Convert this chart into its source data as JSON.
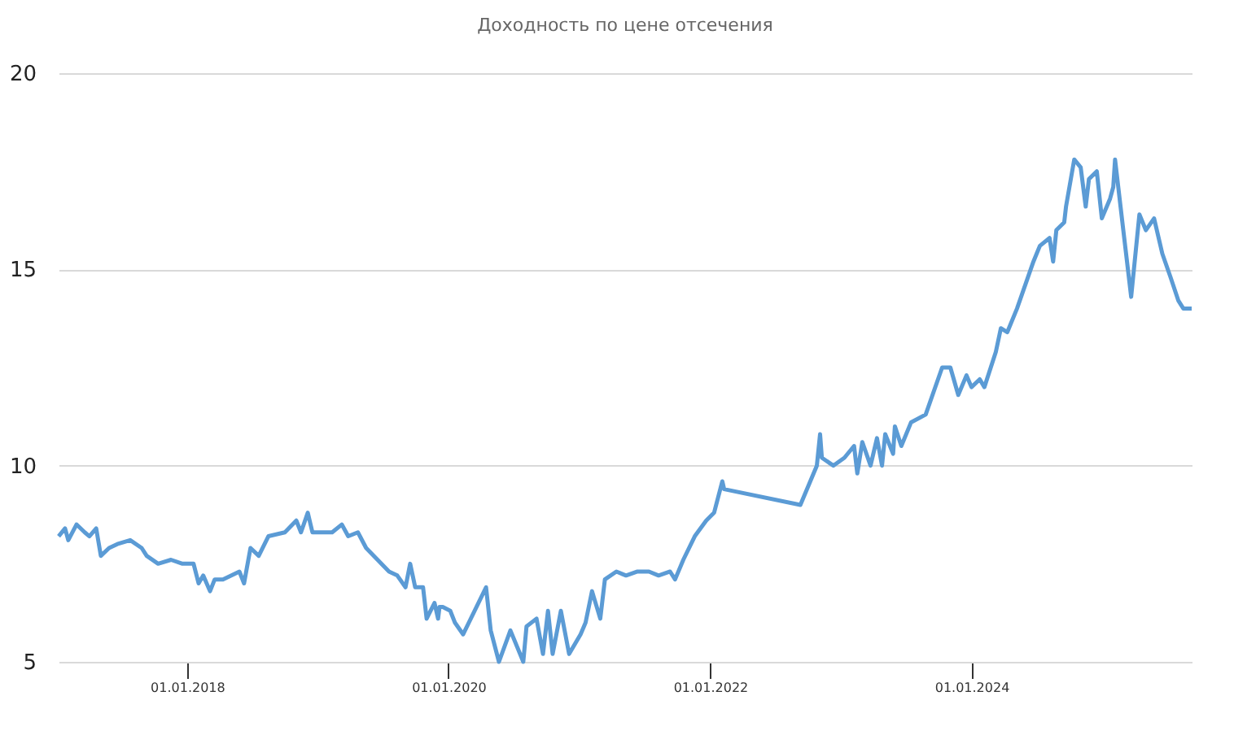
{
  "chart_data": {
    "type": "line",
    "title": "Доходность по цене отсечения",
    "x": [
      "2017-01-07",
      "2017-01-25",
      "2017-02-03",
      "2017-02-26",
      "2017-03-21",
      "2017-04-03",
      "2017-04-22",
      "2017-05-05",
      "2017-05-28",
      "2017-06-20",
      "2017-07-26",
      "2017-08-27",
      "2017-09-10",
      "2017-10-12",
      "2017-11-17",
      "2017-12-19",
      "2018-01-19",
      "2018-02-02",
      "2018-02-15",
      "2018-03-06",
      "2018-03-19",
      "2018-04-11",
      "2018-05-27",
      "2018-06-09",
      "2018-06-27",
      "2018-07-20",
      "2018-08-16",
      "2018-10-01",
      "2018-11-02",
      "2018-11-15",
      "2018-12-04",
      "2018-12-17",
      "2019-02-10",
      "2019-03-09",
      "2019-03-27",
      "2019-04-23",
      "2019-05-16",
      "2019-06-17",
      "2019-07-19",
      "2019-08-11",
      "2019-09-03",
      "2019-09-16",
      "2019-09-30",
      "2019-10-22",
      "2019-11-01",
      "2019-11-23",
      "2019-12-03",
      "2019-12-07",
      "2019-12-16",
      "2020-01-06",
      "2020-01-19",
      "2020-02-11",
      "2020-04-15",
      "2020-04-28",
      "2020-05-21",
      "2020-06-22",
      "2020-07-28",
      "2020-08-06",
      "2020-09-03",
      "2020-09-21",
      "2020-10-05",
      "2020-10-18",
      "2020-11-10",
      "2020-12-03",
      "2021-01-04",
      "2021-01-18",
      "2021-02-05",
      "2021-02-28",
      "2021-03-13",
      "2021-04-14",
      "2021-05-11",
      "2021-06-12",
      "2021-07-14",
      "2021-08-10",
      "2021-09-11",
      "2021-09-25",
      "2021-10-18",
      "2021-11-19",
      "2021-12-21",
      "2022-01-12",
      "2022-02-04",
      "2022-02-09",
      "2022-09-10",
      "2022-10-26",
      "2022-11-04",
      "2022-11-09",
      "2022-12-11",
      "2023-01-11",
      "2023-02-07",
      "2023-02-16",
      "2023-03-02",
      "2023-03-25",
      "2023-04-12",
      "2023-04-26",
      "2023-05-05",
      "2023-05-27",
      "2023-06-01",
      "2023-06-19",
      "2023-07-16",
      "2023-08-26",
      "2023-10-11",
      "2023-11-03",
      "2023-11-25",
      "2023-12-18",
      "2024-01-01",
      "2024-01-24",
      "2024-02-06",
      "2024-03-09",
      "2024-03-23",
      "2024-04-10",
      "2024-05-07",
      "2024-06-22",
      "2024-07-10",
      "2024-08-06",
      "2024-08-16",
      "2024-08-25",
      "2024-09-16",
      "2024-09-21",
      "2024-10-14",
      "2024-11-01",
      "2024-11-15",
      "2024-11-24",
      "2024-12-16",
      "2024-12-30",
      "2025-01-22",
      "2025-01-31",
      "2025-02-05",
      "2025-02-28",
      "2025-03-22",
      "2025-04-14",
      "2025-05-02",
      "2025-05-25",
      "2025-06-17",
      "2025-07-10",
      "2025-08-01",
      "2025-08-15",
      "2025-09-07"
    ],
    "series": [
      {
        "color": "#5b9bd5",
        "values": [
          8.2,
          8.4,
          8.1,
          8.5,
          8.3,
          8.2,
          8.4,
          7.7,
          7.9,
          8.0,
          8.1,
          7.9,
          7.7,
          7.5,
          7.6,
          7.5,
          7.5,
          7.0,
          7.2,
          6.8,
          7.1,
          7.1,
          7.3,
          7.0,
          7.9,
          7.7,
          8.2,
          8.3,
          8.6,
          8.3,
          8.8,
          8.3,
          8.3,
          8.5,
          8.2,
          8.3,
          7.9,
          7.6,
          7.3,
          7.2,
          6.9,
          7.5,
          6.9,
          6.9,
          6.1,
          6.5,
          6.1,
          6.4,
          6.4,
          6.3,
          6.0,
          5.7,
          6.9,
          5.8,
          5.0,
          5.8,
          5.0,
          5.9,
          6.1,
          5.2,
          6.3,
          5.2,
          6.3,
          5.2,
          5.7,
          6.0,
          6.8,
          6.1,
          7.1,
          7.3,
          7.2,
          7.3,
          7.3,
          7.2,
          7.3,
          7.1,
          7.6,
          8.2,
          8.6,
          8.8,
          9.6,
          9.4,
          9.0,
          10.0,
          10.8,
          10.2,
          10.0,
          10.2,
          10.5,
          9.8,
          10.6,
          10.0,
          10.7,
          10.0,
          10.8,
          10.3,
          11.0,
          10.5,
          11.1,
          11.3,
          12.5,
          12.5,
          11.8,
          12.3,
          12.0,
          12.2,
          12.0,
          12.9,
          13.5,
          13.4,
          14.0,
          15.2,
          15.6,
          15.8,
          15.2,
          16.0,
          16.2,
          16.6,
          17.8,
          17.6,
          16.6,
          17.3,
          17.5,
          16.3,
          16.8,
          17.1,
          17.8,
          16.0,
          14.3,
          16.4,
          16.0,
          16.3,
          15.4,
          14.8,
          14.2,
          14.0,
          14.0
        ]
      }
    ],
    "xlim": [
      "2017-01-07",
      "2025-09-07"
    ],
    "xticks": [
      {
        "value": "2018-01-01",
        "label": "01.01.2018"
      },
      {
        "value": "2020-01-01",
        "label": "01.01.2020"
      },
      {
        "value": "2022-01-01",
        "label": "01.01.2022"
      },
      {
        "value": "2024-01-01",
        "label": "01.01.2024"
      }
    ],
    "ylim": [
      5,
      20
    ],
    "yticks": [
      5,
      10,
      15,
      20
    ],
    "grid": "y",
    "marker": "none",
    "line_style": "solid"
  }
}
